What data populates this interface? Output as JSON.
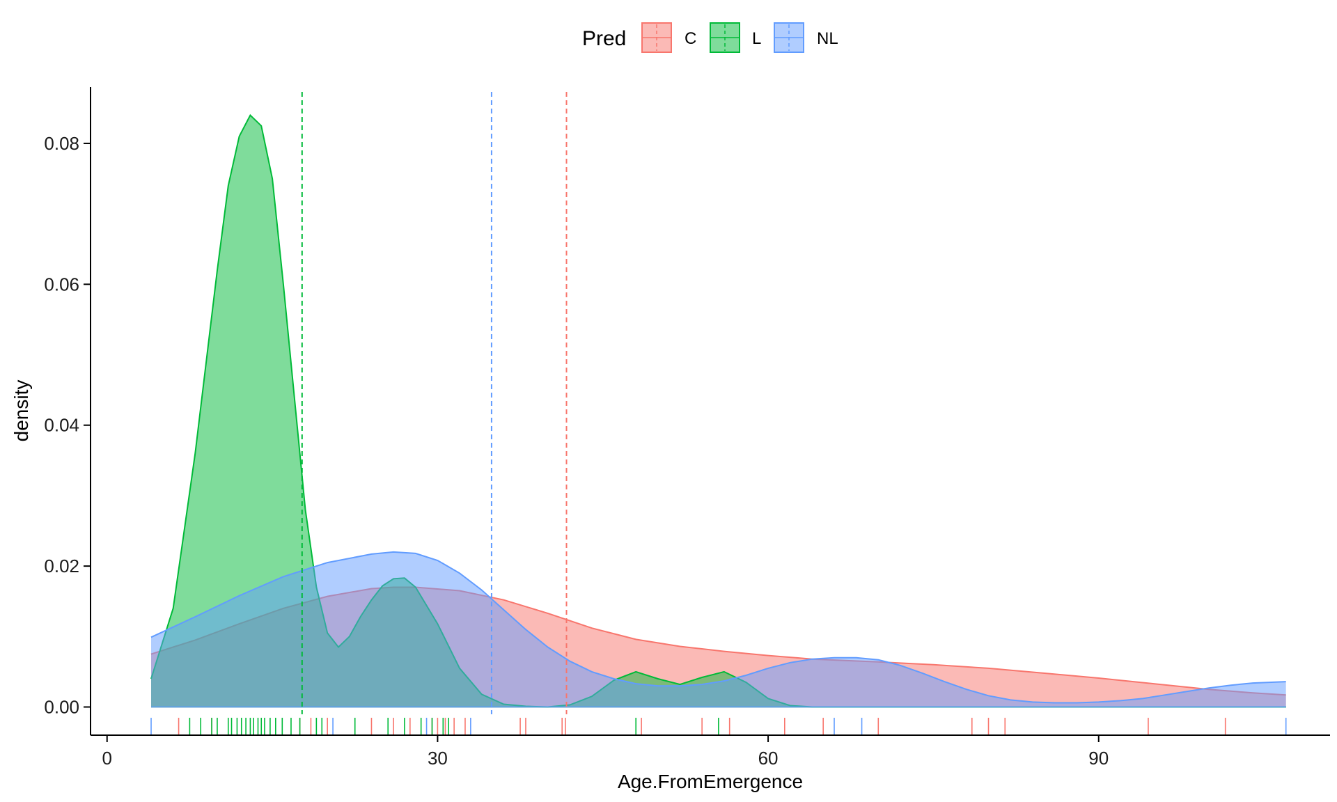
{
  "chart_data": {
    "type": "area",
    "subtype": "density",
    "xlabel": "Age.FromEmergence",
    "ylabel": "density",
    "xlim": [
      -1.5,
      111
    ],
    "ylim": [
      -0.004,
      0.088
    ],
    "x_ticks": [
      0,
      30,
      60,
      90
    ],
    "x_tick_labels": [
      "0",
      "30",
      "60",
      "90"
    ],
    "y_ticks": [
      0,
      0.02,
      0.04,
      0.06,
      0.08
    ],
    "y_tick_labels": [
      "0.00",
      "0.02",
      "0.04",
      "0.06",
      "0.08"
    ],
    "grid": false,
    "legend": {
      "position": "top",
      "title": "Pred",
      "entries": [
        "C",
        "L",
        "NL"
      ]
    },
    "series": [
      {
        "name": "C",
        "color": "#F8766D",
        "mean": 41.7,
        "points": [
          [
            4,
            0.0075
          ],
          [
            8,
            0.0095
          ],
          [
            12,
            0.0118
          ],
          [
            16,
            0.014
          ],
          [
            20,
            0.0157
          ],
          [
            24,
            0.0168
          ],
          [
            26,
            0.017
          ],
          [
            28,
            0.017
          ],
          [
            32,
            0.0165
          ],
          [
            36,
            0.0152
          ],
          [
            40,
            0.0133
          ],
          [
            44,
            0.0112
          ],
          [
            48,
            0.0096
          ],
          [
            52,
            0.0086
          ],
          [
            56,
            0.0079
          ],
          [
            60,
            0.0073
          ],
          [
            64,
            0.0068
          ],
          [
            70,
            0.0064
          ],
          [
            75,
            0.006
          ],
          [
            80,
            0.0055
          ],
          [
            85,
            0.0048
          ],
          [
            90,
            0.0041
          ],
          [
            95,
            0.0033
          ],
          [
            100,
            0.0025
          ],
          [
            104,
            0.002
          ],
          [
            107,
            0.0017
          ]
        ],
        "rug": [
          6.5,
          9.5,
          17.5,
          18.5,
          20,
          24,
          26,
          27.5,
          29.5,
          30,
          30.7,
          31.5,
          32.5,
          37.5,
          38,
          41.3,
          41.6,
          48.5,
          54,
          56.5,
          61.5,
          65,
          70,
          78.5,
          80,
          81.5,
          94.5,
          101.5
        ]
      },
      {
        "name": "L",
        "color": "#00BA38",
        "mean": 17.7,
        "points": [
          [
            4,
            0.004
          ],
          [
            6,
            0.014
          ],
          [
            8,
            0.036
          ],
          [
            10,
            0.062
          ],
          [
            11,
            0.074
          ],
          [
            12,
            0.081
          ],
          [
            13,
            0.084
          ],
          [
            14,
            0.0825
          ],
          [
            15,
            0.075
          ],
          [
            16,
            0.06
          ],
          [
            17,
            0.044
          ],
          [
            18,
            0.028
          ],
          [
            19,
            0.017
          ],
          [
            20,
            0.0105
          ],
          [
            21,
            0.0085
          ],
          [
            22,
            0.01
          ],
          [
            23,
            0.0128
          ],
          [
            24,
            0.0152
          ],
          [
            25,
            0.0172
          ],
          [
            26,
            0.0182
          ],
          [
            27,
            0.0183
          ],
          [
            28,
            0.017
          ],
          [
            30,
            0.0118
          ],
          [
            32,
            0.0055
          ],
          [
            34,
            0.0018
          ],
          [
            36,
            0.0004
          ],
          [
            38,
            0.0001
          ],
          [
            40,
            0.0
          ],
          [
            42,
            0.0003
          ],
          [
            44,
            0.0015
          ],
          [
            46,
            0.0038
          ],
          [
            48,
            0.005
          ],
          [
            50,
            0.004
          ],
          [
            52,
            0.0032
          ],
          [
            54,
            0.0042
          ],
          [
            56,
            0.005
          ],
          [
            58,
            0.0035
          ],
          [
            60,
            0.0012
          ],
          [
            62,
            0.0002
          ],
          [
            64,
            0.0
          ],
          [
            107,
            0.0
          ]
        ],
        "rug": [
          7.5,
          8.5,
          9.5,
          10,
          11,
          11.3,
          11.8,
          12.2,
          12.6,
          13,
          13.3,
          13.7,
          14,
          14.3,
          14.8,
          15.3,
          15.9,
          16.7,
          17.5,
          19,
          19.5,
          22.5,
          25.5,
          27,
          28.5,
          29.5,
          30.5,
          31,
          48,
          55.5
        ]
      },
      {
        "name": "NL",
        "color": "#619CFF",
        "mean": 34.9,
        "points": [
          [
            4,
            0.0099
          ],
          [
            8,
            0.0128
          ],
          [
            12,
            0.0158
          ],
          [
            16,
            0.0185
          ],
          [
            20,
            0.0205
          ],
          [
            24,
            0.0217
          ],
          [
            26,
            0.022
          ],
          [
            28,
            0.0218
          ],
          [
            30,
            0.0208
          ],
          [
            32,
            0.019
          ],
          [
            34,
            0.0166
          ],
          [
            36,
            0.0138
          ],
          [
            38,
            0.011
          ],
          [
            40,
            0.0085
          ],
          [
            42,
            0.0065
          ],
          [
            44,
            0.005
          ],
          [
            46,
            0.004
          ],
          [
            48,
            0.0033
          ],
          [
            50,
            0.003
          ],
          [
            52,
            0.003
          ],
          [
            54,
            0.0032
          ],
          [
            56,
            0.0037
          ],
          [
            58,
            0.0045
          ],
          [
            60,
            0.0055
          ],
          [
            62,
            0.0063
          ],
          [
            64,
            0.0068
          ],
          [
            66,
            0.007
          ],
          [
            68,
            0.007
          ],
          [
            70,
            0.0067
          ],
          [
            72,
            0.0059
          ],
          [
            74,
            0.0048
          ],
          [
            76,
            0.0036
          ],
          [
            78,
            0.0025
          ],
          [
            80,
            0.0016
          ],
          [
            82,
            0.001
          ],
          [
            84,
            0.0007
          ],
          [
            86,
            0.0006
          ],
          [
            88,
            0.0006
          ],
          [
            90,
            0.0007
          ],
          [
            92,
            0.0009
          ],
          [
            94,
            0.0012
          ],
          [
            96,
            0.0017
          ],
          [
            98,
            0.0022
          ],
          [
            100,
            0.0027
          ],
          [
            102,
            0.0031
          ],
          [
            104,
            0.0034
          ],
          [
            107,
            0.0036
          ]
        ],
        "rug": [
          4,
          20.5,
          29,
          33,
          66,
          68.5,
          107
        ]
      }
    ]
  }
}
